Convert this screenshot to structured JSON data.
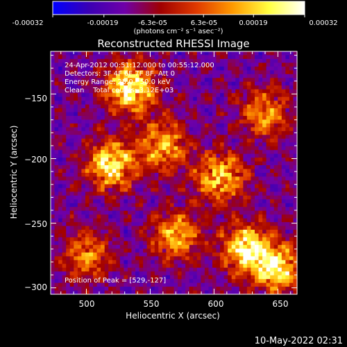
{
  "colorbar": {
    "ticks": [
      "-0.00032",
      "-0.00019",
      "-6.3e-05",
      "6.3e-05",
      "0.00019",
      "0.00032"
    ],
    "values": [
      -0.00032,
      -0.00019,
      -6.3e-05,
      6.3e-05,
      0.00019,
      0.00032
    ],
    "units": "(photons cm⁻² s⁻¹ asec⁻²)",
    "colormap": [
      "#0000ff",
      "#3a00b4",
      "#6f00a8",
      "#a00000",
      "#e03a00",
      "#ff9a00",
      "#ffff40",
      "#ffffff"
    ]
  },
  "info": {
    "line1": "24-Apr-2012 00:51:12.000 to 00:55:12.000",
    "line2": "Detectors: 3F 4F 6F 7F 8F, Att 0",
    "line3": "Energy Range: 25.0 - 50.0 keV",
    "line4": "Clean    Total counts: 3.12E+03"
  },
  "peak_label": "Position of Peak = [529,-127]",
  "timestamp": "10-May-2022 02:31",
  "chart_data": {
    "type": "heatmap",
    "title": "Reconstructed RHESSI Image",
    "xlabel": "Heliocentric X (arcsec)",
    "ylabel": "Heliocentric Y (arcsec)",
    "xlim": [
      472,
      665
    ],
    "ylim": [
      -305,
      -117
    ],
    "xticks": [
      500,
      550,
      600,
      650
    ],
    "yticks": [
      -150,
      -200,
      -250,
      -300
    ],
    "xtick_labels": [
      "500",
      "550",
      "600",
      "650"
    ],
    "ytick_labels": [
      "−150",
      "−200",
      "−250",
      "−300"
    ],
    "peak": [
      529,
      -127
    ],
    "value_range": [
      -0.00032,
      0.00032
    ],
    "bright_regions": [
      {
        "x": 535,
        "y": -145,
        "level": 0.95
      },
      {
        "x": 520,
        "y": -205,
        "level": 0.85
      },
      {
        "x": 560,
        "y": -190,
        "level": 0.7
      },
      {
        "x": 605,
        "y": -215,
        "level": 0.75
      },
      {
        "x": 640,
        "y": -165,
        "level": 0.6
      },
      {
        "x": 625,
        "y": -270,
        "level": 0.9
      },
      {
        "x": 650,
        "y": -285,
        "level": 0.8
      },
      {
        "x": 570,
        "y": -260,
        "level": 0.65
      },
      {
        "x": 500,
        "y": -275,
        "level": 0.55
      }
    ]
  }
}
